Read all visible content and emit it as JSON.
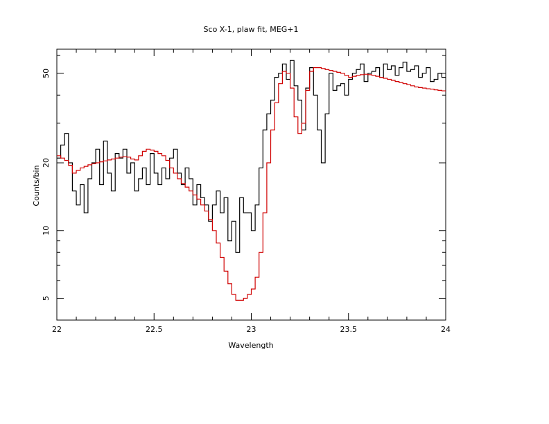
{
  "chart_data": {
    "type": "line",
    "title": "Sco X-1, plaw fit, MEG+1",
    "xlabel": "Wavelength",
    "ylabel": "Counts/bin",
    "xlim": [
      22,
      24
    ],
    "ylim": [
      4,
      64
    ],
    "y_scale": "log",
    "grid": false,
    "x_ticks": [
      {
        "value": 22,
        "label": "22"
      },
      {
        "value": 22.5,
        "label": "22.5"
      },
      {
        "value": 23,
        "label": "23"
      },
      {
        "value": 23.5,
        "label": "23.5"
      },
      {
        "value": 24,
        "label": "24"
      }
    ],
    "y_ticks": [
      {
        "value": 5,
        "label": "5"
      },
      {
        "value": 10,
        "label": "10"
      },
      {
        "value": 20,
        "label": "20"
      },
      {
        "value": 50,
        "label": "50"
      }
    ],
    "colors": {
      "data": "#000000",
      "model": "#d00000"
    },
    "series": [
      {
        "style": "histogram",
        "color": "#000000",
        "x": [
          22.0,
          22.02,
          22.04,
          22.06,
          22.08,
          22.1,
          22.12,
          22.14,
          22.16,
          22.18,
          22.2,
          22.22,
          22.24,
          22.26,
          22.28,
          22.3,
          22.32,
          22.34,
          22.36,
          22.38,
          22.4,
          22.42,
          22.44,
          22.46,
          22.48,
          22.5,
          22.52,
          22.54,
          22.56,
          22.58,
          22.6,
          22.62,
          22.64,
          22.66,
          22.68,
          22.7,
          22.72,
          22.74,
          22.76,
          22.78,
          22.8,
          22.82,
          22.84,
          22.86,
          22.88,
          22.9,
          22.92,
          22.94,
          22.96,
          22.98,
          23.0,
          23.02,
          23.04,
          23.06,
          23.08,
          23.1,
          23.12,
          23.14,
          23.16,
          23.18,
          23.2,
          23.22,
          23.24,
          23.26,
          23.28,
          23.3,
          23.32,
          23.34,
          23.36,
          23.38,
          23.4,
          23.42,
          23.44,
          23.46,
          23.48,
          23.5,
          23.52,
          23.54,
          23.56,
          23.58,
          23.6,
          23.62,
          23.64,
          23.66,
          23.68,
          23.7,
          23.72,
          23.74,
          23.76,
          23.78,
          23.8,
          23.82,
          23.84,
          23.86,
          23.88,
          23.9,
          23.92,
          23.94,
          23.96,
          23.98
        ],
        "y": [
          21,
          24,
          27,
          20,
          15,
          13,
          16,
          12,
          17,
          20,
          23,
          16,
          25,
          18,
          15,
          22,
          21,
          23,
          18,
          20,
          15,
          17,
          19,
          16,
          22,
          18,
          16,
          19,
          17,
          21,
          23,
          18,
          16,
          19,
          17,
          13,
          16,
          14,
          13,
          11,
          13,
          15,
          12,
          14,
          9,
          11,
          8,
          14,
          12,
          12,
          10,
          13,
          19,
          28,
          33,
          38,
          48,
          50,
          55,
          47,
          57,
          44,
          38,
          28,
          43,
          53,
          40,
          28,
          20,
          33,
          50,
          42,
          44,
          45,
          40,
          47,
          50,
          52,
          55,
          46,
          50,
          51,
          53,
          48,
          55,
          52,
          54,
          49,
          53,
          56,
          51,
          52,
          54,
          48,
          50,
          53,
          46,
          47,
          50,
          48
        ]
      },
      {
        "style": "histogram",
        "color": "#d00000",
        "x": [
          22.0,
          22.02,
          22.04,
          22.06,
          22.08,
          22.1,
          22.12,
          22.14,
          22.16,
          22.18,
          22.2,
          22.22,
          22.24,
          22.26,
          22.28,
          22.3,
          22.32,
          22.34,
          22.36,
          22.38,
          22.4,
          22.42,
          22.44,
          22.46,
          22.48,
          22.5,
          22.52,
          22.54,
          22.56,
          22.58,
          22.6,
          22.62,
          22.64,
          22.66,
          22.68,
          22.7,
          22.72,
          22.74,
          22.76,
          22.78,
          22.8,
          22.82,
          22.84,
          22.86,
          22.88,
          22.9,
          22.92,
          22.94,
          22.96,
          22.98,
          23.0,
          23.02,
          23.04,
          23.06,
          23.08,
          23.1,
          23.12,
          23.14,
          23.16,
          23.18,
          23.2,
          23.22,
          23.24,
          23.26,
          23.28,
          23.3,
          23.32,
          23.34,
          23.36,
          23.38,
          23.4,
          23.42,
          23.44,
          23.46,
          23.48,
          23.5,
          23.52,
          23.54,
          23.56,
          23.58,
          23.6,
          23.62,
          23.64,
          23.66,
          23.68,
          23.7,
          23.72,
          23.74,
          23.76,
          23.78,
          23.8,
          23.82,
          23.84,
          23.86,
          23.88,
          23.9,
          23.92,
          23.94,
          23.96,
          23.98
        ],
        "y": [
          21.5,
          21.0,
          20.5,
          19.5,
          18.0,
          18.5,
          19.0,
          19.3,
          19.6,
          19.8,
          20.0,
          20.2,
          20.4,
          20.6,
          20.8,
          21.0,
          21.2,
          21.3,
          21.2,
          20.8,
          20.6,
          21.5,
          22.5,
          23.0,
          22.8,
          22.5,
          22.0,
          21.5,
          20.5,
          19.0,
          18.0,
          17.0,
          16.2,
          15.6,
          15.0,
          14.4,
          13.8,
          13.0,
          12.2,
          11.2,
          10.0,
          8.8,
          7.6,
          6.6,
          5.8,
          5.2,
          4.9,
          4.9,
          5.0,
          5.2,
          5.5,
          6.2,
          8.0,
          12.0,
          20.0,
          28.0,
          37.0,
          45.0,
          51.0,
          50.0,
          43.0,
          32.0,
          27.0,
          30.0,
          42.0,
          51.0,
          53.0,
          53.0,
          52.5,
          52.0,
          51.5,
          51.0,
          50.5,
          50.0,
          49.0,
          48.0,
          48.5,
          49.0,
          49.3,
          49.5,
          49.3,
          49.0,
          48.5,
          48.0,
          47.5,
          47.0,
          46.5,
          46.0,
          45.5,
          45.0,
          44.5,
          44.0,
          43.5,
          43.2,
          43.0,
          42.7,
          42.5,
          42.2,
          42.0,
          41.8
        ]
      }
    ]
  }
}
